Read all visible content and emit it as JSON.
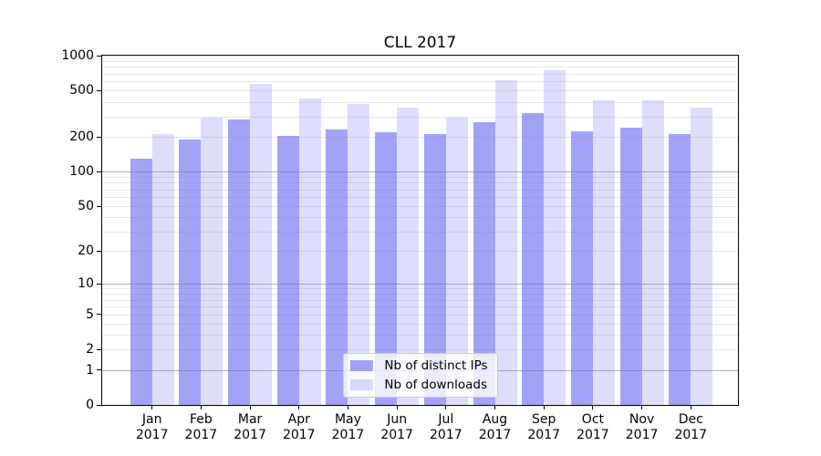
{
  "chart_data": {
    "type": "bar",
    "title": "CLL 2017",
    "xlabel": "",
    "ylabel": "",
    "yscale": "log1p",
    "ylim": [
      0,
      1000
    ],
    "yticks": [
      0,
      1,
      2,
      5,
      10,
      20,
      50,
      100,
      200,
      500,
      1000
    ],
    "major_gridline_values": [
      1,
      10,
      100
    ],
    "grid": "both",
    "legend_position": "lower center",
    "categories": [
      "Jan",
      "Feb",
      "Mar",
      "Apr",
      "May",
      "Jun",
      "Jul",
      "Aug",
      "Sep",
      "Oct",
      "Nov",
      "Dec"
    ],
    "year": "2017",
    "series": [
      {
        "name": "Nb of distinct IPs",
        "color": "rgba(105,105,240,0.62)",
        "values": [
          130,
          190,
          280,
          205,
          230,
          220,
          210,
          265,
          320,
          225,
          240,
          210
        ]
      },
      {
        "name": "Nb of downloads",
        "color": "rgba(105,105,240,0.22)",
        "values": [
          210,
          295,
          570,
          430,
          385,
          355,
          290,
          610,
          750,
          410,
          415,
          355
        ]
      }
    ]
  },
  "colors": {
    "bar_distinct_ips": "#a5a5f5",
    "bar_downloads": "#dedef9",
    "major_grid": "#b0b0b0",
    "minor_grid": "#e8e8e8",
    "axis": "#000000",
    "background": "#ffffff"
  }
}
